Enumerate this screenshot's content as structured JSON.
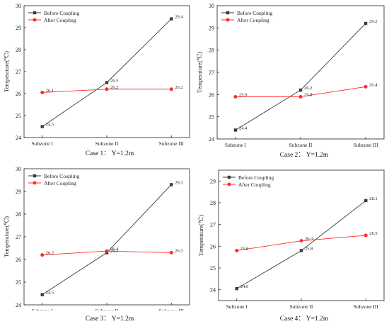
{
  "legend": {
    "before": "Before Coupling",
    "after": "After Coupling"
  },
  "colors": {
    "before": "#3a3a3a",
    "after": "#ff2b2b"
  },
  "chart_data": [
    {
      "type": "line",
      "caption": "Case 1： Y=1.2m",
      "ylabel": "Temperature(℃)",
      "categories": [
        "Subzone I",
        "Subzone II",
        "Subzone III"
      ],
      "ylim": [
        24,
        30
      ],
      "yticks": [
        "24",
        "25",
        "26",
        "27",
        "28",
        "29",
        "30"
      ],
      "legend_position": "top-left",
      "series": [
        {
          "name": "Before Coupling",
          "values": [
            24.5,
            26.5,
            29.4
          ],
          "labels": [
            "24.5",
            "26.5",
            "29.4"
          ]
        },
        {
          "name": "After Coupling",
          "values": [
            26.05,
            26.2,
            26.2
          ],
          "labels": [
            "26.1",
            "26.2",
            "26.2"
          ]
        }
      ]
    },
    {
      "type": "line",
      "caption": "Case 2： Y=1.2m",
      "ylabel": "Temperature(℃)",
      "categories": [
        "Subzone I",
        "Subzone II",
        "Subzone III"
      ],
      "ylim": [
        24,
        30
      ],
      "yticks": [
        "24",
        "25",
        "26",
        "27",
        "28",
        "29",
        "30"
      ],
      "legend_position": "top-left",
      "series": [
        {
          "name": "Before Coupling",
          "values": [
            24.4,
            26.2,
            29.2
          ],
          "labels": [
            "24.4",
            "26.2",
            "29.2"
          ]
        },
        {
          "name": "After Coupling",
          "values": [
            25.9,
            25.9,
            26.35
          ],
          "labels": [
            "25.9",
            "25.9",
            "26.4"
          ]
        }
      ]
    },
    {
      "type": "line",
      "caption": "Case 3： Y=1.2m",
      "ylabel": "Temperature(℃)",
      "categories": [
        "Subzone I",
        "Subzone II",
        "Subzone III"
      ],
      "ylim": [
        24,
        30
      ],
      "yticks": [
        "24",
        "25",
        "26",
        "27",
        "28",
        "29",
        "30"
      ],
      "legend_position": "top-left",
      "series": [
        {
          "name": "Before Coupling",
          "values": [
            24.45,
            26.3,
            29.3
          ],
          "labels": [
            "24.5",
            "26.3",
            "29.3"
          ]
        },
        {
          "name": "After Coupling",
          "values": [
            26.2,
            26.37,
            26.3
          ],
          "labels": [
            "26.2",
            "26.4",
            "26.3"
          ]
        }
      ]
    },
    {
      "type": "line",
      "caption": "Case 4： Y=1.2m",
      "ylabel": "Temperature(℃)",
      "categories": [
        "Subzone I",
        "Subzone II",
        "Subzone III"
      ],
      "ylim": [
        23.5,
        29.5
      ],
      "yticks": [
        "24",
        "25",
        "26",
        "27",
        "28",
        "29"
      ],
      "legend_position": "top-left",
      "series": [
        {
          "name": "Before Coupling",
          "values": [
            24.05,
            25.8,
            28.1
          ],
          "labels": [
            "24.0",
            "25.8",
            "28.1"
          ]
        },
        {
          "name": "After Coupling",
          "values": [
            25.8,
            26.25,
            26.5
          ],
          "labels": [
            "25.8",
            "26.3",
            "26.5"
          ]
        }
      ]
    }
  ]
}
